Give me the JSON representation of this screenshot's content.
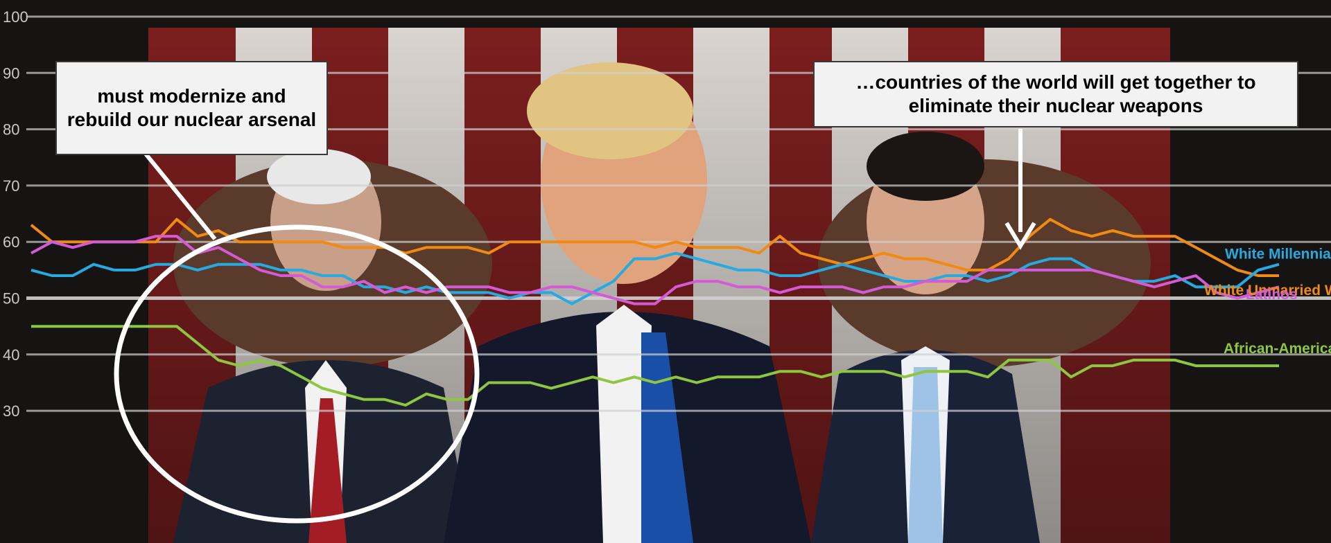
{
  "colors": {
    "background": "#151412",
    "gridline": "#d0d0d0",
    "white_millennials": "#27a9e1",
    "white_unmarried_women": "#f08a12",
    "latinos": "#d45ad6",
    "african_americans": "#8ec63f",
    "callout_box": "#f2f2f2",
    "annotation_white": "#ffffff"
  },
  "annotations": {
    "left_callout": "must modernize and rebuild our nuclear arsenal",
    "right_callout": "…countries of the world will get together to eliminate their nuclear weapons"
  },
  "chart_data": {
    "type": "line",
    "title": "",
    "xlabel": "",
    "ylabel": "",
    "ylim": [
      25,
      100
    ],
    "yticks": [
      100,
      90,
      80,
      70,
      60,
      50,
      40,
      30
    ],
    "grid": true,
    "legend": "series labels at right end of lines",
    "x": [
      0,
      1,
      2,
      3,
      4,
      5,
      6,
      7,
      8,
      9,
      10,
      11,
      12,
      13,
      14,
      15,
      16,
      17,
      18,
      19,
      20,
      21,
      22,
      23,
      24,
      25,
      26,
      27,
      28,
      29,
      30,
      31,
      32,
      33,
      34,
      35,
      36,
      37,
      38,
      39,
      40,
      41,
      42,
      43,
      44,
      45,
      46,
      47,
      48,
      49,
      50,
      51,
      52,
      53,
      54,
      55,
      56,
      57,
      58,
      59,
      60
    ],
    "series": [
      {
        "name": "White Unmarried Women",
        "label_text": "White Unmarried Wo",
        "color_key": "white_unmarried_women",
        "values": [
          63,
          60,
          60,
          60,
          60,
          60,
          60,
          64,
          61,
          62,
          60,
          60,
          60,
          60,
          60,
          59,
          59,
          59,
          58,
          59,
          59,
          59,
          58,
          60,
          60,
          60,
          60,
          60,
          60,
          60,
          59,
          60,
          59,
          59,
          59,
          58,
          61,
          58,
          57,
          56,
          57,
          58,
          57,
          57,
          56,
          55,
          55,
          57,
          61,
          64,
          62,
          61,
          62,
          61,
          61,
          61,
          59,
          57,
          55,
          54,
          54
        ]
      },
      {
        "name": "White Millennials",
        "label_text": "White Millennials",
        "color_key": "white_millennials",
        "values": [
          55,
          54,
          54,
          56,
          55,
          55,
          56,
          56,
          55,
          56,
          56,
          56,
          55,
          55,
          54,
          54,
          52,
          52,
          51,
          52,
          51,
          51,
          51,
          50,
          51,
          51,
          49,
          51,
          53,
          57,
          57,
          58,
          57,
          56,
          55,
          55,
          54,
          54,
          55,
          56,
          55,
          54,
          53,
          53,
          54,
          54,
          53,
          54,
          56,
          57,
          57,
          55,
          54,
          53,
          53,
          54,
          52,
          52,
          52,
          55,
          56
        ]
      },
      {
        "name": "Latinos",
        "label_text": "Latinos",
        "color_key": "latinos",
        "values": [
          58,
          60,
          59,
          60,
          60,
          60,
          61,
          61,
          58,
          59,
          57,
          55,
          54,
          54,
          52,
          52,
          53,
          51,
          52,
          51,
          52,
          52,
          52,
          51,
          51,
          52,
          52,
          51,
          50,
          49,
          49,
          52,
          53,
          53,
          52,
          52,
          51,
          52,
          52,
          52,
          51,
          52,
          52,
          53,
          53,
          53,
          55,
          55,
          55,
          55,
          55,
          55,
          54,
          53,
          52,
          53,
          54,
          51,
          50,
          51,
          52
        ]
      },
      {
        "name": "African-Americans",
        "label_text": "African-Americans",
        "color_key": "african_americans",
        "values": [
          45,
          45,
          45,
          45,
          45,
          45,
          45,
          45,
          42,
          39,
          38,
          39,
          38,
          36,
          34,
          33,
          32,
          32,
          31,
          33,
          32,
          32,
          35,
          35,
          35,
          34,
          35,
          36,
          35,
          36,
          35,
          36,
          35,
          36,
          36,
          36,
          37,
          37,
          36,
          37,
          37,
          37,
          36,
          37,
          37,
          37,
          36,
          39,
          39,
          39,
          36,
          38,
          38,
          39,
          39,
          39,
          38,
          38,
          38,
          38,
          38
        ]
      }
    ],
    "annotations": {
      "left_highlight": "ellipse around the early drop in the African-Americans and Latinos lines",
      "right_pointer": "arrow pointing at the peak of the White Unmarried Women line"
    }
  }
}
